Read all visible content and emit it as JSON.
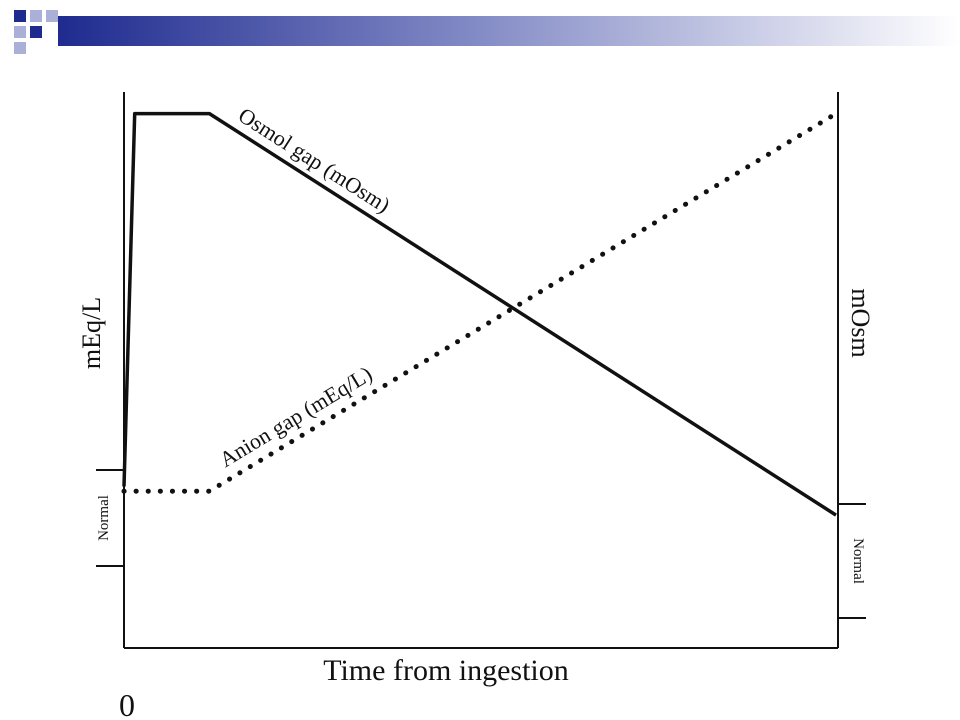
{
  "slide": {
    "accent_dark": "#1f2b8f",
    "accent_light": "#aab0d8"
  },
  "chart_data": {
    "type": "line",
    "xlabel": "Time from ingestion",
    "x_tick_label": "0",
    "ylabel_left": "mEq/L",
    "ylabel_right": "mOsm",
    "normal_label_left": "Normal",
    "normal_label_right": "Normal",
    "xlim": [
      0,
      100
    ],
    "ylim": [
      0,
      100
    ],
    "series": [
      {
        "name": "Osmol gap (mOsm)",
        "style": "solid",
        "x": [
          0,
          1.5,
          12,
          100
        ],
        "y": [
          20,
          98,
          98,
          14
        ]
      },
      {
        "name": "Anion gap (mEq/L)",
        "style": "dotted",
        "x": [
          0,
          12,
          100
        ],
        "y": [
          19,
          19,
          98
        ]
      }
    ]
  }
}
